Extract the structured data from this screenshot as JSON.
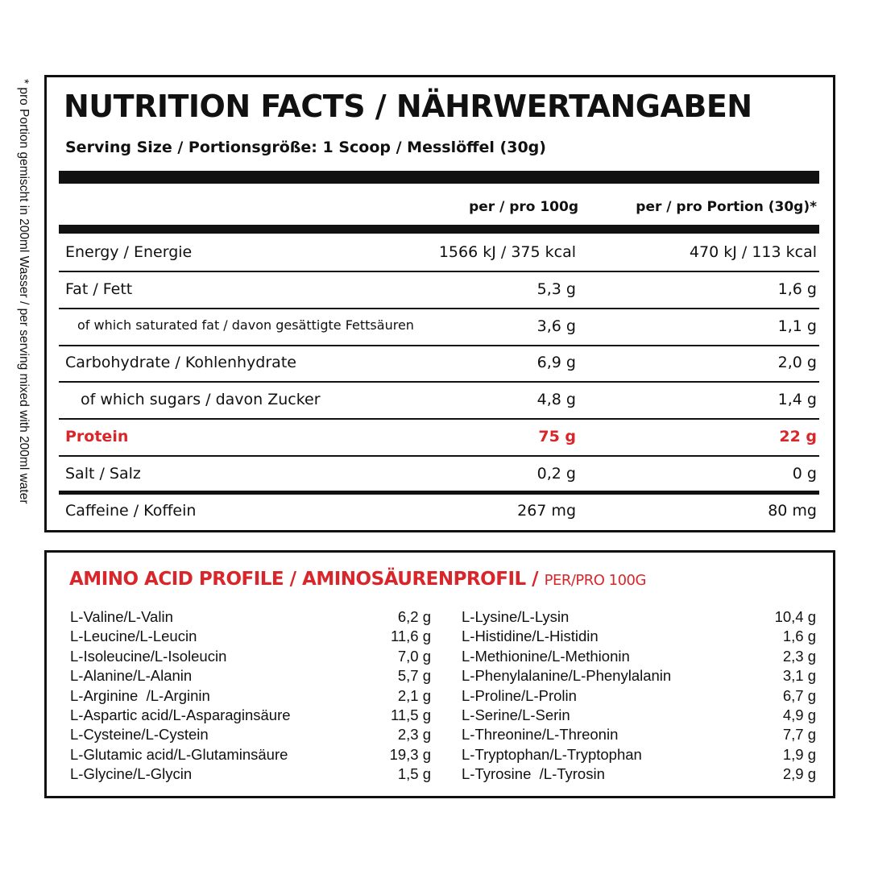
{
  "side_note": "* pro Portion gemischt in 200ml Wasser / per serving mixed with 200ml water",
  "nutrition": {
    "title": "NUTRITION FACTS / NÄHRWERTANGABEN",
    "serving_size": "Serving Size / Portionsgröße: 1 Scoop / Messlöffel (30g)",
    "columns": [
      "per / pro 100g",
      "per / pro Portion (30g)*"
    ],
    "rows": [
      [
        "Energy / Energie",
        "1566 kJ / 375 kcal",
        "470 kJ / 113 kcal"
      ],
      [
        "Fat / Fett",
        "5,3 g",
        "1,6 g"
      ],
      [
        "of which saturated fat / davon gesättigte Fettsäuren",
        "3,6 g",
        "1,1 g"
      ],
      [
        "Carbohydrate / Kohlenhydrate",
        "6,9 g",
        "2,0 g"
      ],
      [
        "of which sugars / davon Zucker",
        "4,8 g",
        "1,4 g"
      ],
      [
        "Protein",
        "75 g",
        "22 g"
      ],
      [
        "Salt / Salz",
        "0,2 g",
        "0 g"
      ],
      [
        "Caffeine / Koffein",
        "267 mg",
        "80 mg"
      ]
    ]
  },
  "amino": {
    "title": "AMINO ACID PROFILE / AMINOSÄURENPROFIL /",
    "subtitle": "PER/PRO 100G",
    "left": [
      [
        "L-Valine/L-Valin",
        "6,2 g"
      ],
      [
        "L-Leucine/L-Leucin",
        "11,6 g"
      ],
      [
        "L-Isoleucine/L-Isoleucin",
        "7,0 g"
      ],
      [
        "L-Alanine/L-Alanin",
        "5,7 g"
      ],
      [
        "L-Arginine  /L-Arginin",
        "2,1 g"
      ],
      [
        "L-Aspartic acid/L-Asparaginsäure",
        "11,5 g"
      ],
      [
        "L-Cysteine/L-Cystein",
        "2,3 g"
      ],
      [
        "L-Glutamic acid/L-Glutaminsäure",
        "19,3 g"
      ],
      [
        "L-Glycine/L-Glycin",
        "1,5 g"
      ]
    ],
    "right": [
      [
        "L-Lysine/L-Lysin",
        "10,4 g"
      ],
      [
        "L-Histidine/L-Histidin",
        "1,6 g"
      ],
      [
        "L-Methionine/L-Methionin",
        "2,3 g"
      ],
      [
        "L-Phenylalanine/L-Phenylalanin",
        "3,1 g"
      ],
      [
        "L-Proline/L-Prolin",
        "6,7 g"
      ],
      [
        "L-Serine/L-Serin",
        "4,9 g"
      ],
      [
        "L-Threonine/L-Threonin",
        "7,7 g"
      ],
      [
        "L-Tryptophan/L-Tryptophan",
        "1,9 g"
      ],
      [
        "L-Tyrosine  /L-Tyrosin",
        "2,9 g"
      ]
    ]
  }
}
